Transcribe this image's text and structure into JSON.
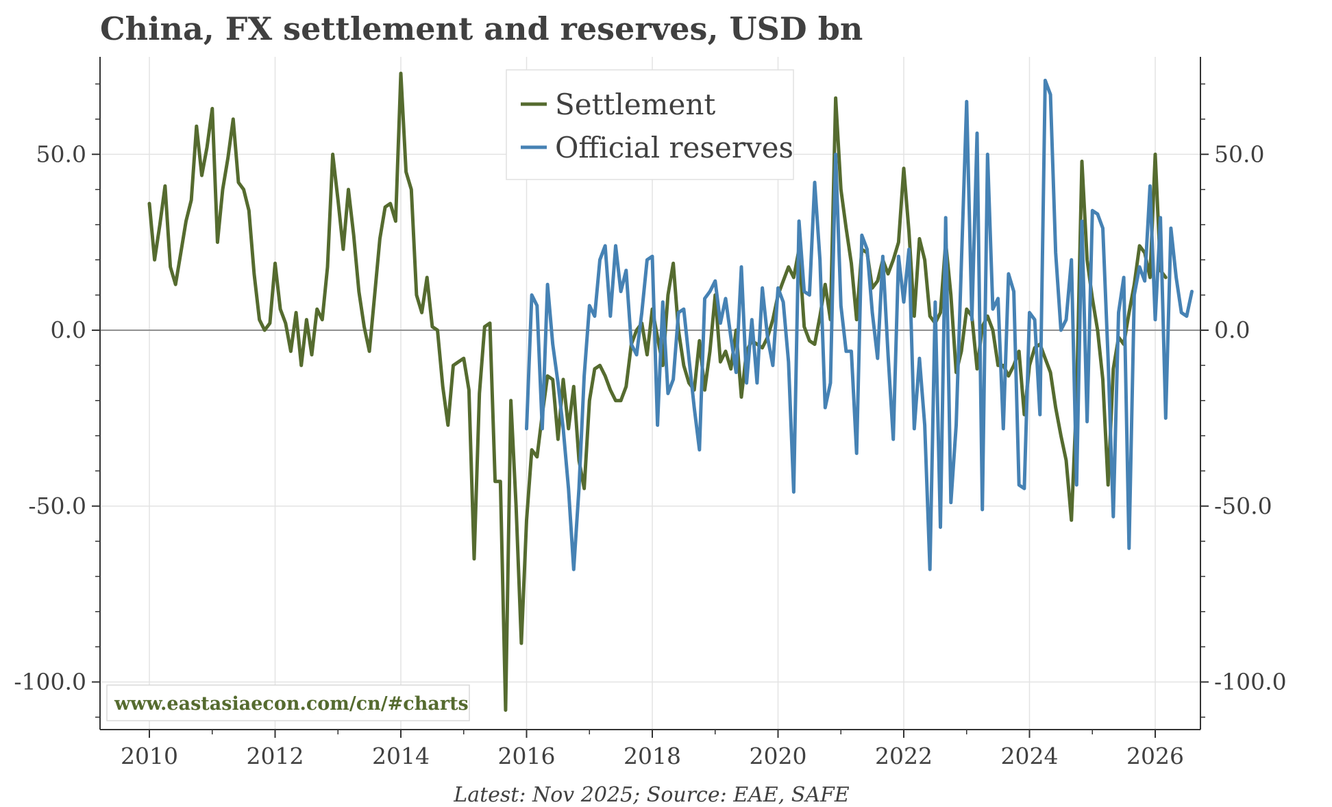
{
  "chart_data": {
    "type": "line",
    "title": "China, FX settlement and reserves, USD bn",
    "source_note": "Latest: Nov 2025; Source: EAE, SAFE",
    "watermark": "www.eastasiaecon.com/cn/#charts",
    "xlabel": "",
    "ylabel": "",
    "xlim": [
      2009.2,
      2026.75
    ],
    "ylim": [
      -113,
      77
    ],
    "x_ticks": [
      "2010",
      "2012",
      "2014",
      "2016",
      "2018",
      "2020",
      "2022",
      "2024",
      "2026"
    ],
    "y_ticks_left": [
      "50.0",
      "0.0",
      "-50.0",
      "-100.0"
    ],
    "y_ticks_right": [
      "50.0",
      "0.0",
      "-50.0",
      "-100.0"
    ],
    "grid": true,
    "zero_line": true,
    "legend_position": "top-center",
    "colors": {
      "settlement": "#556b2f",
      "reserves": "#4682b4",
      "axis": "#333333",
      "text": "#404040",
      "watermark": "#556b2f"
    },
    "series": [
      {
        "name": "Settlement",
        "start_year": 2010,
        "start_month": 1,
        "values": [
          36,
          20,
          30,
          41,
          18,
          13,
          22,
          31,
          37,
          58,
          44,
          52,
          63,
          25,
          40,
          49,
          60,
          42,
          40,
          34,
          16,
          3,
          0,
          2,
          19,
          6,
          2,
          -6,
          5,
          -10,
          3,
          -7,
          6,
          3,
          18,
          50,
          37,
          23,
          40,
          27,
          11,
          1,
          -6,
          10,
          26,
          35,
          36,
          31,
          73,
          45,
          40,
          10,
          5,
          15,
          1,
          0,
          -16,
          -27,
          -10,
          -9,
          -8,
          -17,
          -65,
          -18,
          1,
          2,
          -43,
          -43,
          -108,
          -20,
          -50,
          -89,
          -54,
          -34,
          -36,
          -24,
          -13,
          -14,
          -31,
          -14,
          -28,
          -16,
          -37,
          -45,
          -20,
          -11,
          -10,
          -13,
          -17,
          -20,
          -20,
          -16,
          -4,
          0,
          2,
          -7,
          6,
          -2,
          -10,
          10,
          19,
          0,
          -10,
          -15,
          -17,
          -3,
          -17,
          -6,
          10,
          -9,
          -6,
          -11,
          0,
          -19,
          -6,
          -3,
          -4,
          -5,
          -2,
          3,
          10,
          14,
          18,
          15,
          23,
          1,
          -3,
          -4,
          4,
          13,
          3,
          66,
          40,
          29,
          19,
          3,
          23,
          22,
          12,
          14,
          20,
          16,
          20,
          25,
          46,
          28,
          4,
          26,
          20,
          4,
          2,
          5,
          25,
          10,
          -12,
          -6,
          6,
          4,
          -11,
          1,
          4,
          0,
          -10,
          -10,
          -13,
          -10,
          -6,
          -24,
          -10,
          -5,
          -4,
          -8,
          -12,
          -22,
          -30,
          -37,
          -54,
          -19,
          48,
          20,
          9,
          0,
          -14,
          -44,
          -11,
          -2,
          -4,
          5,
          13,
          24,
          22,
          15,
          50,
          17,
          15
        ]
      },
      {
        "name": "Official reserves",
        "start_year": 2016,
        "start_month": 1,
        "values": [
          -28,
          10,
          7,
          -28,
          13,
          -4,
          -15,
          -28,
          -45,
          -68,
          -45,
          -13,
          7,
          4,
          20,
          24,
          4,
          24,
          11,
          17,
          -4,
          -7,
          5,
          20,
          21,
          -27,
          8,
          -18,
          -14,
          5,
          6,
          -8,
          -22,
          -34,
          9,
          11,
          14,
          2,
          9,
          -2,
          -12,
          18,
          -15,
          3,
          -15,
          12,
          -2,
          -10,
          12,
          8,
          -9,
          -46,
          31,
          11,
          10,
          42,
          20,
          -22,
          -15,
          50,
          7,
          -6,
          -6,
          -35,
          27,
          23,
          5,
          -8,
          21,
          -7,
          -31,
          21,
          8,
          23,
          -28,
          -8,
          -27,
          -68,
          8,
          -56,
          32,
          -49,
          -27,
          19,
          65,
          3,
          56,
          -51,
          50,
          6,
          9,
          -28,
          16,
          11,
          -44,
          -45,
          5,
          3,
          -24,
          71,
          67,
          22,
          0,
          3,
          20,
          -44,
          31,
          -26,
          34,
          33,
          29,
          -8,
          -53,
          5,
          15,
          -62,
          10,
          18,
          14,
          41,
          3,
          32,
          -25,
          29,
          15,
          5,
          4,
          11
        ]
      }
    ]
  }
}
